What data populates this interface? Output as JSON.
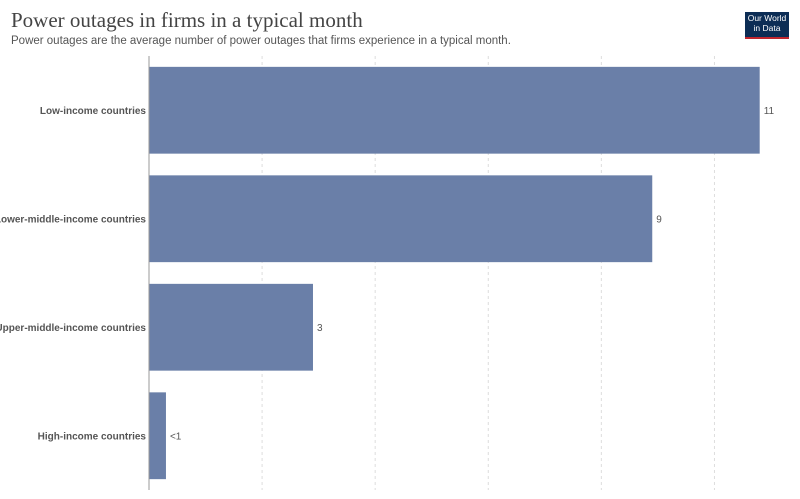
{
  "header": {
    "title": "Power outages in firms in a typical month",
    "subtitle": "Power outages are the average number of power outages that firms experience in a typical month."
  },
  "logo": {
    "line1": "Our World",
    "line2": "in Data"
  },
  "colors": {
    "bar": "#6a7fa8",
    "grid": "#dddddd",
    "axis": "#999999"
  },
  "chart_data": {
    "type": "bar",
    "orientation": "horizontal",
    "categories": [
      "Low-income countries",
      "Lower-middle-income countries",
      "Upper-middle-income countries",
      "High-income countries"
    ],
    "values": [
      10.8,
      8.9,
      2.9,
      0.3
    ],
    "value_labels": [
      "11",
      "9",
      "3",
      "<1"
    ],
    "xlim": [
      0,
      11
    ],
    "grid": true
  }
}
